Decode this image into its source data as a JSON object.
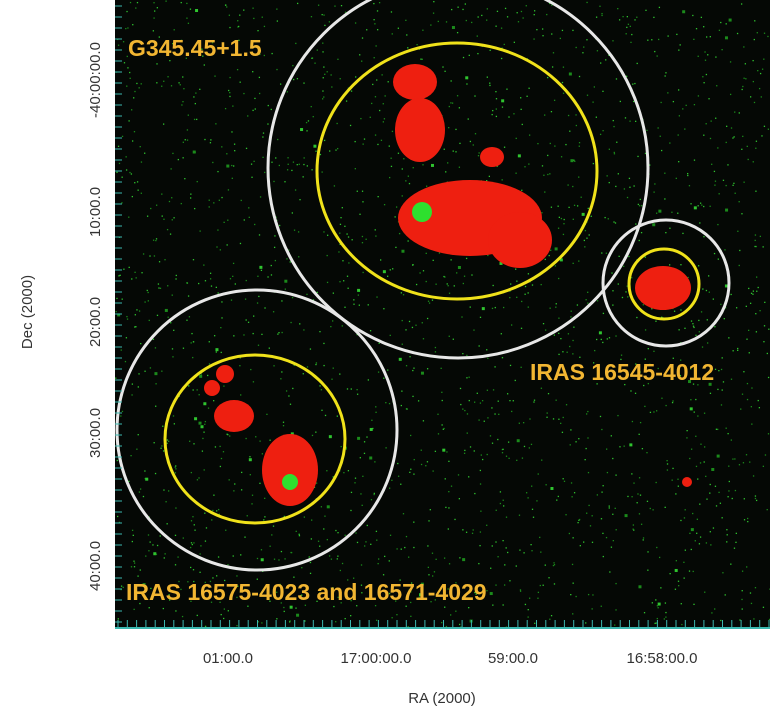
{
  "axes": {
    "x_label": "RA (2000)",
    "y_label": "Dec (2000)",
    "x_ticks": [
      "01:00.0",
      "17:00:00.0",
      "59:00.0",
      "16:58:00.0"
    ],
    "y_ticks": [
      "-40:00:00.0",
      "10:00.0",
      "20:00.0",
      "30:00.0",
      "40:00.0"
    ]
  },
  "annotations": [
    "G345.45+1.5",
    "IRAS 16545-4012",
    "IRAS 16575-4023 and 16571-4029"
  ]
}
